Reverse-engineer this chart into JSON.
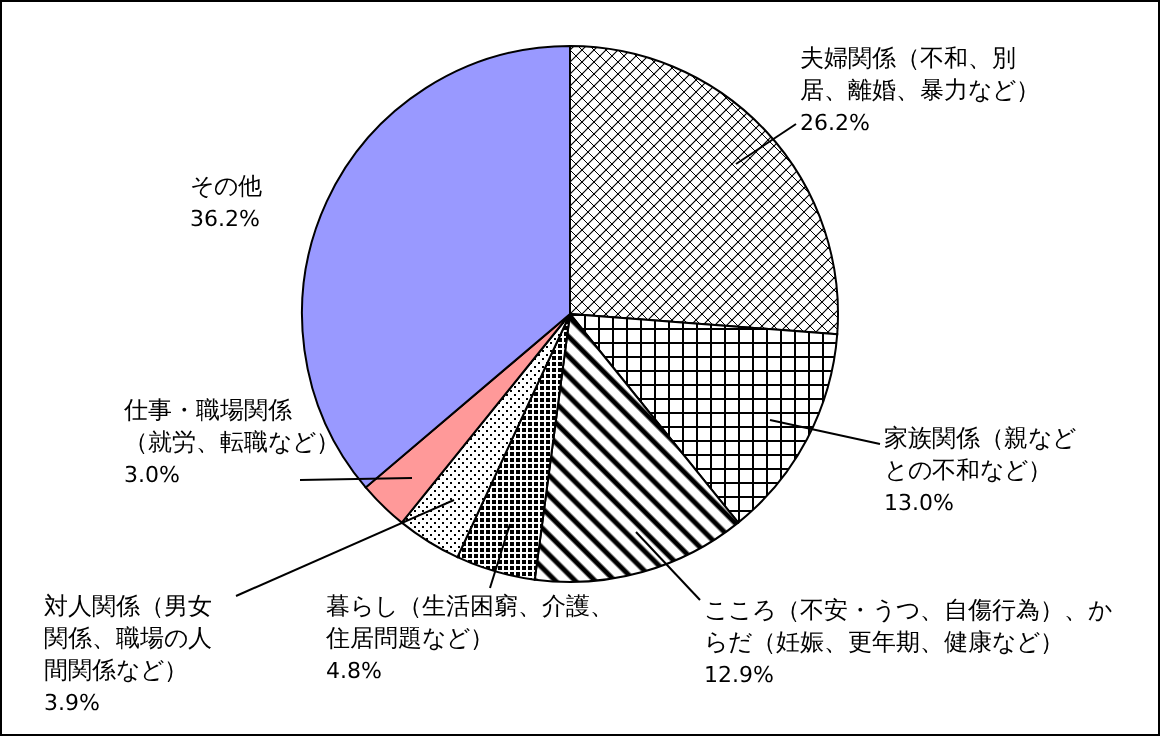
{
  "chart_data": {
    "type": "pie",
    "categories": [
      "夫婦関係（不和、別居、離婚、暴力など）",
      "家族関係（親などとの不和など）",
      "こころ（不安・うつ、自傷行為）、からだ（妊娠、更年期、健康など）",
      "暮らし（生活困窮、介護、住居問題など）",
      "対人関係（男女関係、職場の人間関係など）",
      "仕事・職場関係（就労、転職など）",
      "その他"
    ],
    "values": [
      26.2,
      13.0,
      12.9,
      4.8,
      3.9,
      3.0,
      36.2
    ],
    "value_labels": [
      "26.2%",
      "13.0%",
      "12.9%",
      "4.8%",
      "3.9%",
      "3.0%",
      "36.2%"
    ],
    "colors": [
      "#000000",
      "#000000",
      "#000000",
      "#000000",
      "#000000",
      "#ff9999",
      "#9999ff"
    ]
  }
}
